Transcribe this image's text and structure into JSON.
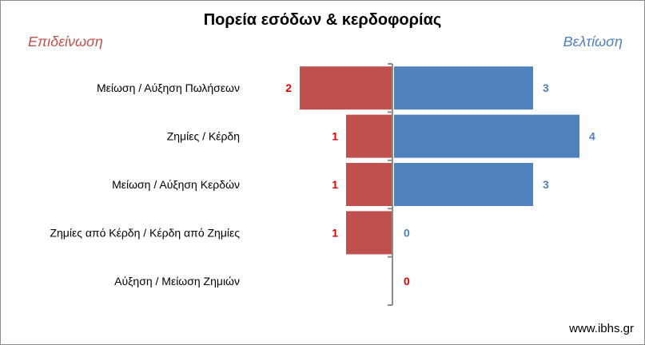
{
  "chart_data": {
    "type": "bar",
    "orientation": "horizontal-diverging",
    "title": "Πορεία εσόδων & κερδοφορίας",
    "left_label": "Επιδείνωση",
    "right_label": "Βελτίωση",
    "categories": [
      "Μείωση / Αύξηση Πωλήσεων",
      "Ζημίες / Κέρδη",
      "Μείωση / Αύξηση Κερδών",
      "Ζημίες από Κέρδη / Κέρδη από Ζημίες",
      "Αύξηση / Μείωση Ζημιών"
    ],
    "series": [
      {
        "values": [
          2,
          1,
          1,
          1,
          0
        ],
        "color": "#c0504d",
        "side": "left"
      },
      {
        "values": [
          3,
          4,
          3,
          0,
          0
        ],
        "color": "#4f81bd",
        "side": "right"
      }
    ],
    "last_row_label_color": "#e00000",
    "xlim": [
      -4,
      4
    ],
    "grid": false
  },
  "colors": {
    "left_series": "#c0504d",
    "right_series": "#4f81bd",
    "left_value_label": "#e00000",
    "right_value_label": "#4f81bd",
    "left_heading": "#c0504d",
    "right_heading": "#4f81bd"
  },
  "footer": "www.ibhs.gr"
}
